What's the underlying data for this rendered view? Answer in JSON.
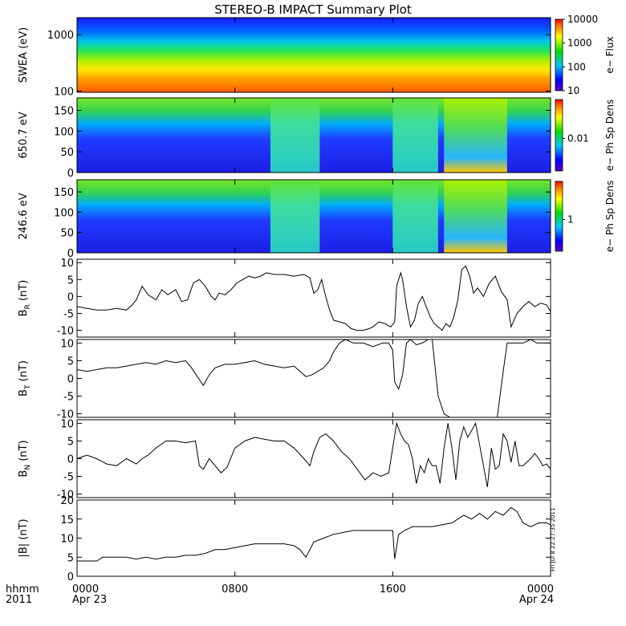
{
  "title": "STEREO-B IMPACT Summary Plot",
  "footer": {
    "time_label": "hhmm",
    "year": "2011"
  },
  "stamp": "Fri Jul 8 22:27:35 2011",
  "x_axis": {
    "ticks": [
      {
        "time": "0000",
        "date": "Apr 23",
        "hour": 0
      },
      {
        "time": "0800",
        "date": "",
        "hour": 8
      },
      {
        "time": "1600",
        "date": "",
        "hour": 16
      },
      {
        "time": "0000",
        "date": "Apr 24",
        "hour": 24
      }
    ],
    "range_hours": [
      0,
      24
    ]
  },
  "chart_data": [
    {
      "type": "heatmap",
      "name": "swea",
      "ylabel": "SWEA (eV)",
      "yscale": "log",
      "ylim": [
        95,
        2000
      ],
      "yticks": [
        {
          "value": 1000,
          "label": "1000"
        },
        {
          "value": 100,
          "label": "100"
        }
      ],
      "colorbar": {
        "label": "e− Flux",
        "scale": "log",
        "range": [
          10,
          10000
        ],
        "ticks": [
          {
            "value": 10000,
            "label": "10000"
          },
          {
            "value": 1000,
            "label": "1000"
          },
          {
            "value": 100,
            "label": "100"
          },
          {
            "value": 10,
            "label": "10"
          }
        ]
      }
    },
    {
      "type": "heatmap",
      "name": "pad650",
      "ylabel": "650.7 eV",
      "ylim": [
        0,
        180
      ],
      "yticks": [
        {
          "value": 0,
          "label": "0"
        },
        {
          "value": 50,
          "label": "50"
        },
        {
          "value": 100,
          "label": "100"
        },
        {
          "value": 150,
          "label": "150"
        }
      ],
      "colorbar": {
        "label": "e− Ph Sp Dens",
        "ticks": [
          {
            "value": 0.01,
            "label": "0.01"
          }
        ]
      },
      "regions": [
        {
          "from_hour": 0,
          "to_hour": 9.8,
          "level": "low"
        },
        {
          "from_hour": 9.8,
          "to_hour": 12.3,
          "level": "mid"
        },
        {
          "from_hour": 12.8,
          "to_hour": 16,
          "level": "low"
        },
        {
          "from_hour": 16,
          "to_hour": 18.3,
          "level": "mid"
        },
        {
          "from_hour": 18.6,
          "to_hour": 21.8,
          "level": "high"
        },
        {
          "from_hour": 21.8,
          "to_hour": 24,
          "level": "low"
        }
      ]
    },
    {
      "type": "heatmap",
      "name": "pad246",
      "ylabel": "246.6 eV",
      "ylim": [
        0,
        180
      ],
      "yticks": [
        {
          "value": 0,
          "label": "0"
        },
        {
          "value": 50,
          "label": "50"
        },
        {
          "value": 100,
          "label": "100"
        },
        {
          "value": 150,
          "label": "150"
        }
      ],
      "colorbar": {
        "label": "e− Ph Sp Dens",
        "ticks": [
          {
            "value": 1,
            "label": "1"
          }
        ]
      },
      "regions": [
        {
          "from_hour": 0,
          "to_hour": 9.8,
          "level": "low"
        },
        {
          "from_hour": 9.8,
          "to_hour": 12.3,
          "level": "mid"
        },
        {
          "from_hour": 12.8,
          "to_hour": 16,
          "level": "low"
        },
        {
          "from_hour": 16,
          "to_hour": 18.3,
          "level": "mid"
        },
        {
          "from_hour": 18.6,
          "to_hour": 21.8,
          "level": "high"
        },
        {
          "from_hour": 21.8,
          "to_hour": 24,
          "level": "low"
        }
      ]
    },
    {
      "type": "line",
      "name": "BR",
      "ylabel": "B",
      "ylabel_sub": "R",
      "ylabel_unit": "(nT)",
      "ylim": [
        -12,
        11
      ],
      "yticks": [
        {
          "value": 10,
          "label": "10"
        },
        {
          "value": 5,
          "label": "5"
        },
        {
          "value": 0,
          "label": "0"
        },
        {
          "value": -5,
          "label": "-5"
        },
        {
          "value": -10,
          "label": "-10"
        }
      ],
      "x": [
        0,
        0.5,
        1,
        1.5,
        2,
        2.5,
        2.8,
        3,
        3.3,
        3.6,
        4,
        4.3,
        4.6,
        5,
        5.3,
        5.6,
        5.9,
        6.2,
        6.5,
        6.8,
        7,
        7.2,
        7.5,
        7.8,
        8.1,
        8.4,
        8.7,
        9,
        9.3,
        9.6,
        10,
        10.5,
        11,
        11.5,
        11.8,
        12,
        12.2,
        12.4,
        12.6,
        12.8,
        13,
        13.3,
        13.6,
        13.9,
        14.2,
        14.5,
        14.8,
        15,
        15.3,
        15.6,
        15.9,
        16.1,
        16.2,
        16.4,
        16.5,
        16.7,
        16.9,
        17.1,
        17.3,
        17.5,
        17.7,
        17.9,
        18.1,
        18.3,
        18.5,
        18.7,
        18.9,
        19.1,
        19.3,
        19.5,
        19.7,
        19.9,
        20.1,
        20.3,
        20.6,
        20.9,
        21.2,
        21.5,
        21.8,
        22,
        22.3,
        22.6,
        22.9,
        23.2,
        23.5,
        23.8,
        24
      ],
      "values": [
        -3,
        -3.5,
        -4,
        -4,
        -3.5,
        -4,
        -2.5,
        -1,
        3,
        0.5,
        -1,
        2,
        0.5,
        2,
        -1.5,
        -1,
        4,
        5,
        3,
        0,
        -1,
        1,
        0.5,
        2,
        4,
        5,
        6,
        5.5,
        6,
        7,
        6.5,
        6.5,
        6,
        6.5,
        5.5,
        1,
        2,
        5,
        0,
        -4,
        -7,
        -7.5,
        -8,
        -9.5,
        -10,
        -10,
        -9.5,
        -9,
        -7.5,
        -8,
        -9,
        -7.5,
        3,
        7,
        5,
        -3,
        -9,
        -7,
        -2,
        0,
        -3,
        -6,
        -8,
        -9,
        -10,
        -8,
        -9,
        -6,
        -1,
        8,
        9,
        6,
        1,
        2.5,
        0,
        4,
        6,
        1.5,
        -1,
        -9,
        -5,
        -3,
        -1.5,
        -3,
        -2,
        -2.5,
        -4.5
      ]
    },
    {
      "type": "line",
      "name": "BT",
      "ylabel": "B",
      "ylabel_sub": "T",
      "ylabel_unit": "(nT)",
      "ylim": [
        -11,
        11
      ],
      "yticks": [
        {
          "value": 10,
          "label": "10"
        },
        {
          "value": 5,
          "label": "5"
        },
        {
          "value": 0,
          "label": "0"
        },
        {
          "value": -5,
          "label": "-5"
        },
        {
          "value": -10,
          "label": "-10"
        }
      ],
      "x": [
        0,
        0.5,
        1,
        1.5,
        2,
        2.5,
        3,
        3.5,
        4,
        4.5,
        5,
        5.5,
        5.8,
        6.1,
        6.4,
        6.7,
        7,
        7.5,
        8,
        8.5,
        9,
        9.5,
        10,
        10.5,
        11,
        11.3,
        11.6,
        11.9,
        12.2,
        12.5,
        12.8,
        13,
        13.3,
        13.6,
        14,
        14.5,
        15,
        15.5,
        15.8,
        16,
        16.1,
        16.3,
        16.5,
        16.7,
        16.9,
        17.2,
        17.5,
        17.8,
        18,
        18.3,
        18.6,
        18.9,
        19.2,
        19.4,
        19.6,
        19.8,
        20,
        20.5,
        21,
        21.3,
        21.6,
        21.8,
        22,
        22.3,
        22.6,
        23,
        23.3,
        23.6,
        24
      ],
      "values": [
        2.5,
        2,
        2.5,
        3,
        3,
        3.5,
        4,
        4.5,
        4,
        5,
        4.5,
        5,
        3,
        0.5,
        -2,
        1,
        3,
        4,
        4,
        4.5,
        5,
        4,
        3.5,
        3,
        3.5,
        2,
        0.5,
        1,
        2,
        3,
        5,
        7.5,
        10,
        11,
        10,
        10,
        9,
        10,
        10,
        8,
        -1,
        -3,
        1,
        10,
        11,
        9.5,
        10,
        11,
        11,
        -5,
        -10,
        -11,
        -11,
        -11,
        -11,
        -11,
        -11,
        -11,
        -11,
        -11,
        2,
        10,
        10,
        10,
        10,
        11,
        10,
        10,
        10
      ]
    },
    {
      "type": "line",
      "name": "BN",
      "ylabel": "B",
      "ylabel_sub": "N",
      "ylabel_unit": "(nT)",
      "ylim": [
        -11,
        11
      ],
      "yticks": [
        {
          "value": 10,
          "label": "10"
        },
        {
          "value": 5,
          "label": "5"
        },
        {
          "value": 0,
          "label": "0"
        },
        {
          "value": -5,
          "label": "-5"
        },
        {
          "value": -10,
          "label": "-10"
        }
      ],
      "x": [
        0,
        0.5,
        1,
        1.5,
        2,
        2.5,
        3,
        3.3,
        3.6,
        4,
        4.5,
        5,
        5.5,
        6,
        6.2,
        6.4,
        6.7,
        7,
        7.3,
        7.6,
        8,
        8.5,
        9,
        9.5,
        10,
        10.5,
        11,
        11.5,
        11.8,
        12,
        12.3,
        12.6,
        13,
        13.4,
        13.8,
        14.2,
        14.6,
        15,
        15.4,
        15.8,
        16,
        16.2,
        16.4,
        16.6,
        16.8,
        17,
        17.2,
        17.4,
        17.6,
        17.8,
        18,
        18.2,
        18.4,
        18.6,
        18.8,
        19,
        19.2,
        19.4,
        19.6,
        19.8,
        20,
        20.2,
        20.4,
        20.6,
        20.8,
        21,
        21.2,
        21.4,
        21.6,
        21.8,
        22,
        22.2,
        22.4,
        22.6,
        22.8,
        23,
        23.2,
        23.4,
        23.6,
        23.8,
        24
      ],
      "values": [
        0,
        1,
        0,
        -1.5,
        -2,
        0,
        -1.5,
        0,
        1,
        3,
        5,
        5,
        4.5,
        5,
        -2,
        -3,
        0,
        -2,
        -4,
        -2.5,
        3,
        5,
        6,
        5.5,
        5,
        5,
        3,
        0,
        -2,
        2,
        6,
        7,
        5,
        2,
        0,
        -3,
        -6,
        -4,
        -5,
        -4,
        3,
        10,
        7,
        5,
        4,
        0,
        -7,
        -2,
        -4,
        0,
        -2,
        -2,
        -7,
        3,
        10,
        3,
        -6,
        5,
        9,
        6,
        8,
        10,
        4,
        -2,
        -8,
        3,
        -3,
        -2,
        7,
        5,
        -1,
        5,
        -2,
        -2,
        -1,
        0,
        1.5,
        0,
        -2,
        -1.5,
        -3
      ]
    },
    {
      "type": "line",
      "name": "Bmag",
      "ylabel": "|B| (nT)",
      "ylim": [
        0,
        20
      ],
      "yticks": [
        {
          "value": 20,
          "label": "20"
        },
        {
          "value": 15,
          "label": "15"
        },
        {
          "value": 10,
          "label": "10"
        },
        {
          "value": 5,
          "label": "5"
        },
        {
          "value": 0,
          "label": "0"
        }
      ],
      "x": [
        0,
        1,
        1.3,
        1.8,
        2.5,
        3,
        3.5,
        4,
        4.5,
        5,
        5.5,
        6,
        6.5,
        7,
        7.5,
        8,
        8.5,
        9,
        9.5,
        10,
        10.5,
        11,
        11.3,
        11.6,
        12,
        12.5,
        13,
        13.5,
        14,
        14.5,
        15,
        15.5,
        16,
        16.1,
        16.3,
        16.6,
        17,
        17.5,
        18,
        18.5,
        19,
        19.3,
        19.6,
        20,
        20.4,
        20.8,
        21.2,
        21.6,
        22,
        22.3,
        22.6,
        23,
        23.4,
        23.8,
        24
      ],
      "values": [
        4,
        4,
        5,
        5,
        5,
        4.5,
        5,
        4.5,
        5,
        5,
        5.5,
        5.5,
        6,
        7,
        7,
        7.5,
        8,
        8.5,
        8.5,
        8.5,
        8.5,
        8,
        7,
        5,
        9,
        10,
        11,
        11.5,
        12,
        12,
        12,
        12,
        12,
        4.5,
        11,
        12,
        13,
        13,
        13,
        13.5,
        14,
        15,
        16,
        15,
        16.5,
        15,
        17,
        16,
        18,
        17,
        14,
        13,
        14,
        14,
        13.5
      ]
    }
  ]
}
